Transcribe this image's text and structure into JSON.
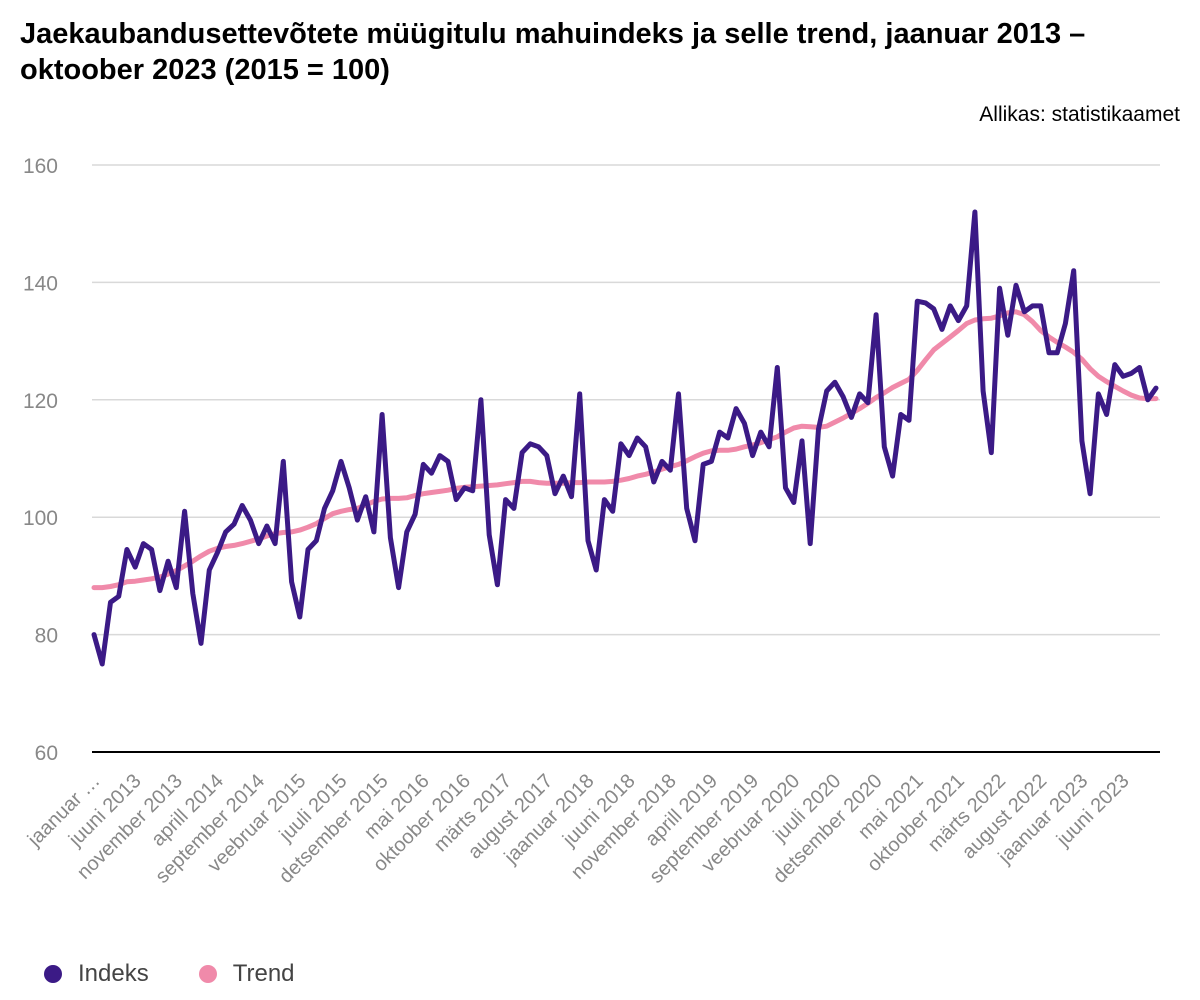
{
  "title": "Jaekaubandusettevõtete müügitulu mahuindeks ja selle trend, jaanuar 2013 – oktoober 2023 (2015 = 100)",
  "source": "Allikas: statistikaamet",
  "colors": {
    "index": "#3b1a86",
    "trend": "#f08aaa",
    "grid": "#d9d9d9",
    "axis": "#000000",
    "tick_text": "#888888"
  },
  "chart_data": {
    "type": "line",
    "title": "Jaekaubandusettevõtete müügitulu mahuindeks ja selle trend, jaanuar 2013 – oktoober 2023 (2015 = 100)",
    "xlabel": "",
    "ylabel": "",
    "ylim": [
      60,
      160
    ],
    "yticks": [
      60,
      80,
      100,
      120,
      140,
      160
    ],
    "grid": true,
    "legend_position": "bottom-left",
    "x_tick_labels": [
      "jaanuar …",
      "juuni 2013",
      "november 2013",
      "aprill 2014",
      "september 2014",
      "veebruar 2015",
      "juuli 2015",
      "detsember 2015",
      "mai 2016",
      "oktoober 2016",
      "märts 2017",
      "august 2017",
      "jaanuar 2018",
      "juuni 2018",
      "november 2018",
      "aprill 2019",
      "september 2019",
      "veebruar 2020",
      "juuli 2020",
      "detsember 2020",
      "mai 2021",
      "oktoober 2021",
      "märts 2022",
      "august 2022",
      "jaanuar 2023",
      "juuni 2023"
    ],
    "x_tick_every_months": 5,
    "x": "Monthly, jaanuar 2013 – oktoober 2023 (130 months)",
    "series": [
      {
        "name": "Indeks",
        "color": "#3b1a86",
        "values": [
          80,
          75,
          85.5,
          86.5,
          94.5,
          91.5,
          95.5,
          94.5,
          87.5,
          92.5,
          88,
          101,
          87,
          78.5,
          91,
          94,
          97.5,
          98.8,
          102,
          99.5,
          95.5,
          98.5,
          95.5,
          109.5,
          89,
          83,
          94.5,
          96,
          101.5,
          104.5,
          109.5,
          105,
          99.5,
          103.5,
          97.5,
          117.5,
          96.5,
          88,
          97.5,
          100.5,
          109,
          107.5,
          110.5,
          109.5,
          103,
          105,
          104.5,
          120,
          97,
          88.5,
          103,
          101.5,
          111,
          112.5,
          112,
          110.5,
          104,
          107,
          103.5,
          121,
          96,
          91,
          103,
          101,
          112.5,
          110.5,
          113.5,
          112,
          106,
          109.5,
          108,
          121,
          101.5,
          96,
          109,
          109.5,
          114.5,
          113.5,
          118.5,
          116,
          110.5,
          114.5,
          112,
          125.5,
          105,
          102.5,
          113,
          95.5,
          115,
          121.5,
          123,
          120.5,
          117,
          121,
          119.5,
          134.5,
          112,
          107,
          117.5,
          116.5,
          136.8,
          136.5,
          135.5,
          132,
          136,
          133.5,
          136,
          152,
          121.5,
          111,
          139,
          131,
          139.5,
          135,
          136,
          136,
          128,
          128,
          133,
          142,
          113,
          104,
          121,
          117.5,
          126,
          124,
          124.5,
          125.5,
          120,
          122
        ]
      },
      {
        "name": "Trend",
        "color": "#f08aaa",
        "values": [
          88,
          88,
          88.2,
          88.5,
          89,
          89.1,
          89.3,
          89.5,
          89.8,
          90.3,
          90.9,
          91.7,
          92.5,
          93.4,
          94.2,
          94.7,
          95,
          95.2,
          95.5,
          95.9,
          96.3,
          96.8,
          97.2,
          97.4,
          97.5,
          97.8,
          98.3,
          98.9,
          99.8,
          100.6,
          101,
          101.3,
          101.5,
          102.1,
          102.7,
          103.1,
          103.2,
          103.2,
          103.3,
          103.7,
          104,
          104.2,
          104.4,
          104.6,
          104.9,
          105.1,
          105.2,
          105.3,
          105.4,
          105.5,
          105.7,
          105.9,
          106.1,
          106.1,
          105.9,
          105.8,
          105.8,
          105.8,
          105.9,
          105.9,
          106,
          106,
          106,
          106.1,
          106.3,
          106.6,
          107,
          107.3,
          107.7,
          108.2,
          108.6,
          109,
          109.6,
          110.3,
          110.9,
          111.3,
          111.4,
          111.4,
          111.6,
          112,
          112.3,
          112.7,
          113.2,
          113.7,
          114.5,
          115.2,
          115.5,
          115.4,
          115.3,
          115.5,
          116.2,
          116.9,
          117.7,
          118.5,
          119.4,
          120.4,
          121.2,
          122.1,
          122.8,
          123.5,
          125,
          126.8,
          128.5,
          129.6,
          130.7,
          131.8,
          133,
          133.6,
          133.8,
          133.9,
          134.3,
          134.8,
          135,
          134.5,
          133.3,
          131.8,
          130.7,
          129.8,
          129,
          128.1,
          126.9,
          125.3,
          124,
          123.1,
          122.3,
          121.5,
          120.8,
          120.3,
          120.2,
          120.2
        ]
      }
    ]
  }
}
